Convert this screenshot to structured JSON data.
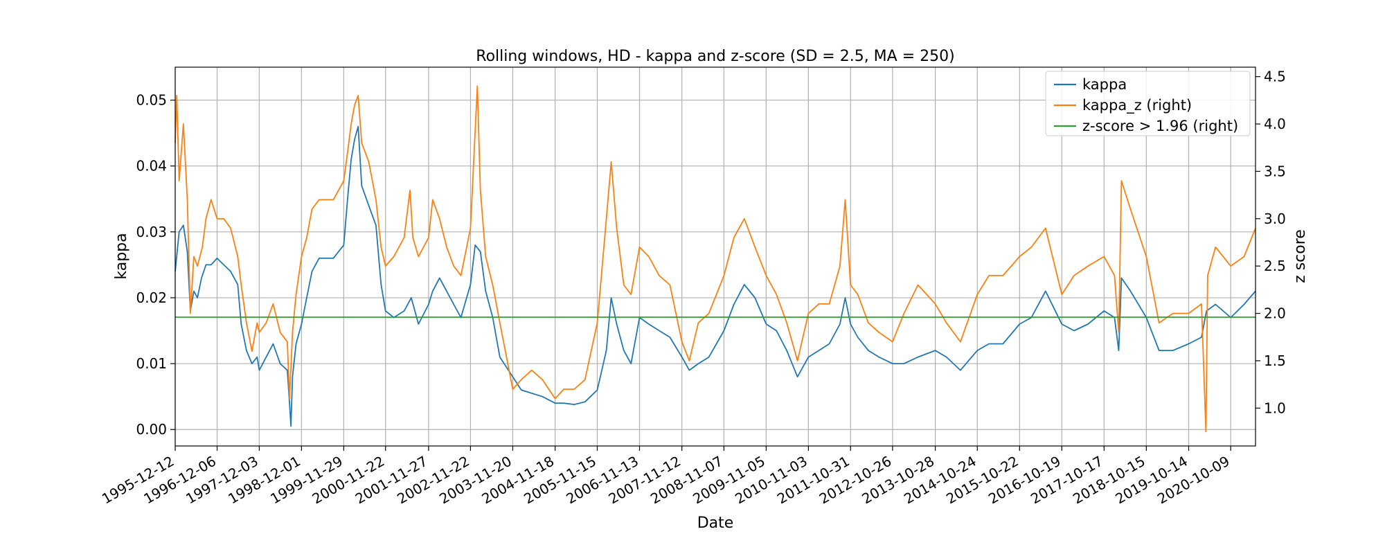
{
  "chart_data": {
    "type": "line",
    "title": "Rolling windows, HD - kappa and z-score (SD = 2.5, MA = 250)",
    "xlabel": "Date",
    "ylabel": "kappa",
    "ylabel_right": "z score",
    "grid": true,
    "legend_placement": "top-right",
    "x_tick_labels": [
      "1995-12-12",
      "1996-12-06",
      "1997-12-03",
      "1998-12-01",
      "1999-11-29",
      "2000-11-22",
      "2001-11-27",
      "2002-11-22",
      "2003-11-20",
      "2004-11-18",
      "2005-11-15",
      "2006-11-13",
      "2007-11-12",
      "2008-11-07",
      "2009-11-05",
      "2010-11-03",
      "2011-10-31",
      "2012-10-26",
      "2013-10-28",
      "2014-10-24",
      "2015-10-22",
      "2016-10-19",
      "2017-10-17",
      "2018-10-15",
      "2019-10-14",
      "2020-10-09"
    ],
    "xlim": [
      "1995-12-12",
      "2021-05-10"
    ],
    "ylim_left": [
      -0.0025,
      0.055
    ],
    "yticks_left": [
      "0.00",
      "0.01",
      "0.02",
      "0.03",
      "0.04",
      "0.05"
    ],
    "ylim_right": [
      0.6,
      4.6
    ],
    "yticks_right": [
      "1.0",
      "1.5",
      "2.0",
      "2.5",
      "3.0",
      "3.5",
      "4.0",
      "4.5"
    ],
    "series": [
      {
        "name": "kappa",
        "axis": "left",
        "color": "#1f77b4",
        "points": [
          [
            "1995-12-12",
            0.024
          ],
          [
            "1996-01-15",
            0.03
          ],
          [
            "1996-02-20",
            0.031
          ],
          [
            "1996-03-25",
            0.027
          ],
          [
            "1996-04-20",
            0.018
          ],
          [
            "1996-05-20",
            0.021
          ],
          [
            "1996-06-20",
            0.02
          ],
          [
            "1996-07-25",
            0.023
          ],
          [
            "1996-09-01",
            0.025
          ],
          [
            "1996-10-15",
            0.025
          ],
          [
            "1996-12-06",
            0.026
          ],
          [
            "1997-02-01",
            0.025
          ],
          [
            "1997-04-01",
            0.024
          ],
          [
            "1997-06-01",
            0.022
          ],
          [
            "1997-07-01",
            0.016
          ],
          [
            "1997-08-15",
            0.012
          ],
          [
            "1997-10-01",
            0.01
          ],
          [
            "1997-11-15",
            0.011
          ],
          [
            "1997-12-03",
            0.009
          ],
          [
            "1998-02-01",
            0.011
          ],
          [
            "1998-04-01",
            0.013
          ],
          [
            "1998-06-01",
            0.01
          ],
          [
            "1998-08-01",
            0.009
          ],
          [
            "1998-08-20",
            0.004
          ],
          [
            "1998-09-01",
            0.0005
          ],
          [
            "1998-09-15",
            0.008
          ],
          [
            "1998-10-15",
            0.013
          ],
          [
            "1998-12-01",
            0.016
          ],
          [
            "1999-01-15",
            0.02
          ],
          [
            "1999-03-01",
            0.024
          ],
          [
            "1999-05-01",
            0.026
          ],
          [
            "1999-07-01",
            0.026
          ],
          [
            "1999-09-01",
            0.026
          ],
          [
            "1999-10-15",
            0.027
          ],
          [
            "1999-11-29",
            0.028
          ],
          [
            "2000-01-01",
            0.035
          ],
          [
            "2000-02-01",
            0.041
          ],
          [
            "2000-03-01",
            0.044
          ],
          [
            "2000-04-01",
            0.046
          ],
          [
            "2000-05-01",
            0.037
          ],
          [
            "2000-07-01",
            0.034
          ],
          [
            "2000-09-01",
            0.031
          ],
          [
            "2000-10-15",
            0.022
          ],
          [
            "2000-11-22",
            0.018
          ],
          [
            "2001-02-01",
            0.017
          ],
          [
            "2001-05-01",
            0.018
          ],
          [
            "2001-07-01",
            0.02
          ],
          [
            "2001-09-01",
            0.016
          ],
          [
            "2001-11-27",
            0.019
          ],
          [
            "2002-01-01",
            0.021
          ],
          [
            "2002-03-01",
            0.023
          ],
          [
            "2002-05-01",
            0.021
          ],
          [
            "2002-07-01",
            0.019
          ],
          [
            "2002-09-01",
            0.017
          ],
          [
            "2002-11-22",
            0.022
          ],
          [
            "2003-01-01",
            0.028
          ],
          [
            "2003-02-15",
            0.027
          ],
          [
            "2003-04-01",
            0.021
          ],
          [
            "2003-06-01",
            0.017
          ],
          [
            "2003-08-01",
            0.011
          ],
          [
            "2003-11-20",
            0.008
          ],
          [
            "2004-02-01",
            0.006
          ],
          [
            "2004-05-01",
            0.0055
          ],
          [
            "2004-08-01",
            0.005
          ],
          [
            "2004-11-18",
            0.004
          ],
          [
            "2005-02-01",
            0.004
          ],
          [
            "2005-05-01",
            0.0038
          ],
          [
            "2005-08-01",
            0.0042
          ],
          [
            "2005-11-15",
            0.006
          ],
          [
            "2006-02-01",
            0.012
          ],
          [
            "2006-03-15",
            0.02
          ],
          [
            "2006-05-01",
            0.016
          ],
          [
            "2006-07-01",
            0.012
          ],
          [
            "2006-09-01",
            0.01
          ],
          [
            "2006-11-13",
            0.017
          ],
          [
            "2007-02-01",
            0.016
          ],
          [
            "2007-05-01",
            0.015
          ],
          [
            "2007-08-01",
            0.014
          ],
          [
            "2007-11-12",
            0.011
          ],
          [
            "2008-01-15",
            0.009
          ],
          [
            "2008-04-01",
            0.01
          ],
          [
            "2008-07-01",
            0.011
          ],
          [
            "2008-11-07",
            0.015
          ],
          [
            "2009-02-01",
            0.019
          ],
          [
            "2009-05-01",
            0.022
          ],
          [
            "2009-08-01",
            0.02
          ],
          [
            "2009-11-05",
            0.016
          ],
          [
            "2010-02-01",
            0.015
          ],
          [
            "2010-05-01",
            0.012
          ],
          [
            "2010-08-01",
            0.008
          ],
          [
            "2010-11-03",
            0.011
          ],
          [
            "2011-02-01",
            0.012
          ],
          [
            "2011-05-01",
            0.013
          ],
          [
            "2011-08-01",
            0.016
          ],
          [
            "2011-09-15",
            0.02
          ],
          [
            "2011-10-31",
            0.016
          ],
          [
            "2012-01-01",
            0.014
          ],
          [
            "2012-04-01",
            0.012
          ],
          [
            "2012-07-01",
            0.011
          ],
          [
            "2012-10-26",
            0.01
          ],
          [
            "2013-02-01",
            0.01
          ],
          [
            "2013-06-01",
            0.011
          ],
          [
            "2013-10-28",
            0.012
          ],
          [
            "2014-02-01",
            0.011
          ],
          [
            "2014-06-01",
            0.009
          ],
          [
            "2014-10-24",
            0.012
          ],
          [
            "2015-02-01",
            0.013
          ],
          [
            "2015-06-01",
            0.013
          ],
          [
            "2015-10-22",
            0.016
          ],
          [
            "2016-02-01",
            0.017
          ],
          [
            "2016-06-01",
            0.021
          ],
          [
            "2016-10-19",
            0.016
          ],
          [
            "2017-02-01",
            0.015
          ],
          [
            "2017-06-01",
            0.016
          ],
          [
            "2017-10-17",
            0.018
          ],
          [
            "2018-01-15",
            0.017
          ],
          [
            "2018-02-20",
            0.012
          ],
          [
            "2018-03-15",
            0.023
          ],
          [
            "2018-06-01",
            0.021
          ],
          [
            "2018-10-15",
            0.017
          ],
          [
            "2019-02-01",
            0.012
          ],
          [
            "2019-06-01",
            0.012
          ],
          [
            "2019-10-14",
            0.013
          ],
          [
            "2020-02-01",
            0.014
          ],
          [
            "2020-03-15",
            0.018
          ],
          [
            "2020-06-01",
            0.019
          ],
          [
            "2020-10-09",
            0.017
          ],
          [
            "2021-02-01",
            0.019
          ],
          [
            "2021-05-10",
            0.021
          ]
        ]
      },
      {
        "name": "kappa_z (right)",
        "axis": "right",
        "color": "#ff7f0e",
        "points": [
          [
            "1995-12-12",
            3.8
          ],
          [
            "1995-12-25",
            4.3
          ],
          [
            "1996-01-15",
            3.4
          ],
          [
            "1996-02-20",
            4.0
          ],
          [
            "1996-03-25",
            3.2
          ],
          [
            "1996-04-20",
            2.0
          ],
          [
            "1996-05-20",
            2.6
          ],
          [
            "1996-06-20",
            2.5
          ],
          [
            "1996-08-01",
            2.7
          ],
          [
            "1996-09-01",
            3.0
          ],
          [
            "1996-10-15",
            3.2
          ],
          [
            "1996-12-06",
            3.0
          ],
          [
            "1997-02-01",
            3.0
          ],
          [
            "1997-04-01",
            2.9
          ],
          [
            "1997-06-01",
            2.6
          ],
          [
            "1997-07-01",
            2.3
          ],
          [
            "1997-08-15",
            1.9
          ],
          [
            "1997-10-01",
            1.6
          ],
          [
            "1997-11-15",
            1.9
          ],
          [
            "1997-12-03",
            1.8
          ],
          [
            "1998-02-01",
            1.9
          ],
          [
            "1998-04-01",
            2.1
          ],
          [
            "1998-06-01",
            1.8
          ],
          [
            "1998-08-01",
            1.7
          ],
          [
            "1998-08-20",
            1.1
          ],
          [
            "1998-09-15",
            1.8
          ],
          [
            "1998-10-15",
            2.2
          ],
          [
            "1998-12-01",
            2.6
          ],
          [
            "1999-01-15",
            2.8
          ],
          [
            "1999-03-01",
            3.1
          ],
          [
            "1999-05-01",
            3.2
          ],
          [
            "1999-07-01",
            3.2
          ],
          [
            "1999-09-01",
            3.2
          ],
          [
            "1999-10-15",
            3.3
          ],
          [
            "1999-11-29",
            3.4
          ],
          [
            "2000-01-01",
            3.7
          ],
          [
            "2000-02-01",
            4.0
          ],
          [
            "2000-03-01",
            4.2
          ],
          [
            "2000-04-01",
            4.3
          ],
          [
            "2000-05-01",
            3.8
          ],
          [
            "2000-07-01",
            3.6
          ],
          [
            "2000-09-01",
            3.2
          ],
          [
            "2000-10-15",
            2.7
          ],
          [
            "2000-11-22",
            2.5
          ],
          [
            "2001-02-01",
            2.6
          ],
          [
            "2001-05-01",
            2.8
          ],
          [
            "2001-06-20",
            3.3
          ],
          [
            "2001-07-15",
            2.8
          ],
          [
            "2001-09-01",
            2.6
          ],
          [
            "2001-11-27",
            2.8
          ],
          [
            "2002-01-01",
            3.2
          ],
          [
            "2002-03-01",
            3.0
          ],
          [
            "2002-05-01",
            2.7
          ],
          [
            "2002-07-01",
            2.5
          ],
          [
            "2002-09-01",
            2.4
          ],
          [
            "2002-11-22",
            2.9
          ],
          [
            "2003-01-20",
            4.4
          ],
          [
            "2003-02-15",
            3.3
          ],
          [
            "2003-04-01",
            2.6
          ],
          [
            "2003-06-01",
            2.3
          ],
          [
            "2003-08-01",
            1.9
          ],
          [
            "2003-11-20",
            1.2
          ],
          [
            "2004-02-01",
            1.3
          ],
          [
            "2004-05-01",
            1.4
          ],
          [
            "2004-08-01",
            1.3
          ],
          [
            "2004-11-18",
            1.1
          ],
          [
            "2005-02-01",
            1.2
          ],
          [
            "2005-05-01",
            1.2
          ],
          [
            "2005-08-01",
            1.3
          ],
          [
            "2005-11-15",
            1.9
          ],
          [
            "2006-02-01",
            3.0
          ],
          [
            "2006-03-15",
            3.6
          ],
          [
            "2006-05-01",
            2.9
          ],
          [
            "2006-07-01",
            2.3
          ],
          [
            "2006-09-01",
            2.2
          ],
          [
            "2006-11-13",
            2.7
          ],
          [
            "2007-02-01",
            2.6
          ],
          [
            "2007-05-01",
            2.4
          ],
          [
            "2007-08-01",
            2.3
          ],
          [
            "2007-11-12",
            1.7
          ],
          [
            "2008-01-15",
            1.5
          ],
          [
            "2008-04-01",
            1.9
          ],
          [
            "2008-07-01",
            2.0
          ],
          [
            "2008-11-07",
            2.4
          ],
          [
            "2009-02-01",
            2.8
          ],
          [
            "2009-05-01",
            3.0
          ],
          [
            "2009-08-01",
            2.7
          ],
          [
            "2009-11-05",
            2.4
          ],
          [
            "2010-02-01",
            2.2
          ],
          [
            "2010-05-01",
            1.9
          ],
          [
            "2010-08-01",
            1.5
          ],
          [
            "2010-11-03",
            2.0
          ],
          [
            "2011-02-01",
            2.1
          ],
          [
            "2011-05-01",
            2.1
          ],
          [
            "2011-08-01",
            2.5
          ],
          [
            "2011-09-15",
            3.2
          ],
          [
            "2011-10-31",
            2.3
          ],
          [
            "2012-01-01",
            2.2
          ],
          [
            "2012-04-01",
            1.9
          ],
          [
            "2012-07-01",
            1.8
          ],
          [
            "2012-10-26",
            1.7
          ],
          [
            "2013-02-01",
            2.0
          ],
          [
            "2013-06-01",
            2.3
          ],
          [
            "2013-10-28",
            2.1
          ],
          [
            "2014-02-01",
            1.9
          ],
          [
            "2014-06-01",
            1.7
          ],
          [
            "2014-10-24",
            2.2
          ],
          [
            "2015-02-01",
            2.4
          ],
          [
            "2015-06-01",
            2.4
          ],
          [
            "2015-10-22",
            2.6
          ],
          [
            "2016-02-01",
            2.7
          ],
          [
            "2016-06-01",
            2.9
          ],
          [
            "2016-10-19",
            2.2
          ],
          [
            "2017-02-01",
            2.4
          ],
          [
            "2017-06-01",
            2.5
          ],
          [
            "2017-10-17",
            2.6
          ],
          [
            "2018-01-15",
            2.4
          ],
          [
            "2018-02-20",
            1.8
          ],
          [
            "2018-03-15",
            3.4
          ],
          [
            "2018-06-01",
            3.1
          ],
          [
            "2018-10-15",
            2.6
          ],
          [
            "2019-02-01",
            1.9
          ],
          [
            "2019-06-01",
            2.0
          ],
          [
            "2019-10-14",
            2.0
          ],
          [
            "2020-02-01",
            2.1
          ],
          [
            "2020-03-10",
            0.75
          ],
          [
            "2020-03-25",
            2.4
          ],
          [
            "2020-06-01",
            2.7
          ],
          [
            "2020-10-09",
            2.5
          ],
          [
            "2021-02-01",
            2.6
          ],
          [
            "2021-05-10",
            2.9
          ]
        ]
      },
      {
        "name": "z-score > 1.96 (right)",
        "axis": "right",
        "color": "#2ca02c",
        "points": [
          [
            "1995-12-12",
            1.96
          ],
          [
            "2021-05-10",
            1.96
          ]
        ]
      }
    ]
  }
}
